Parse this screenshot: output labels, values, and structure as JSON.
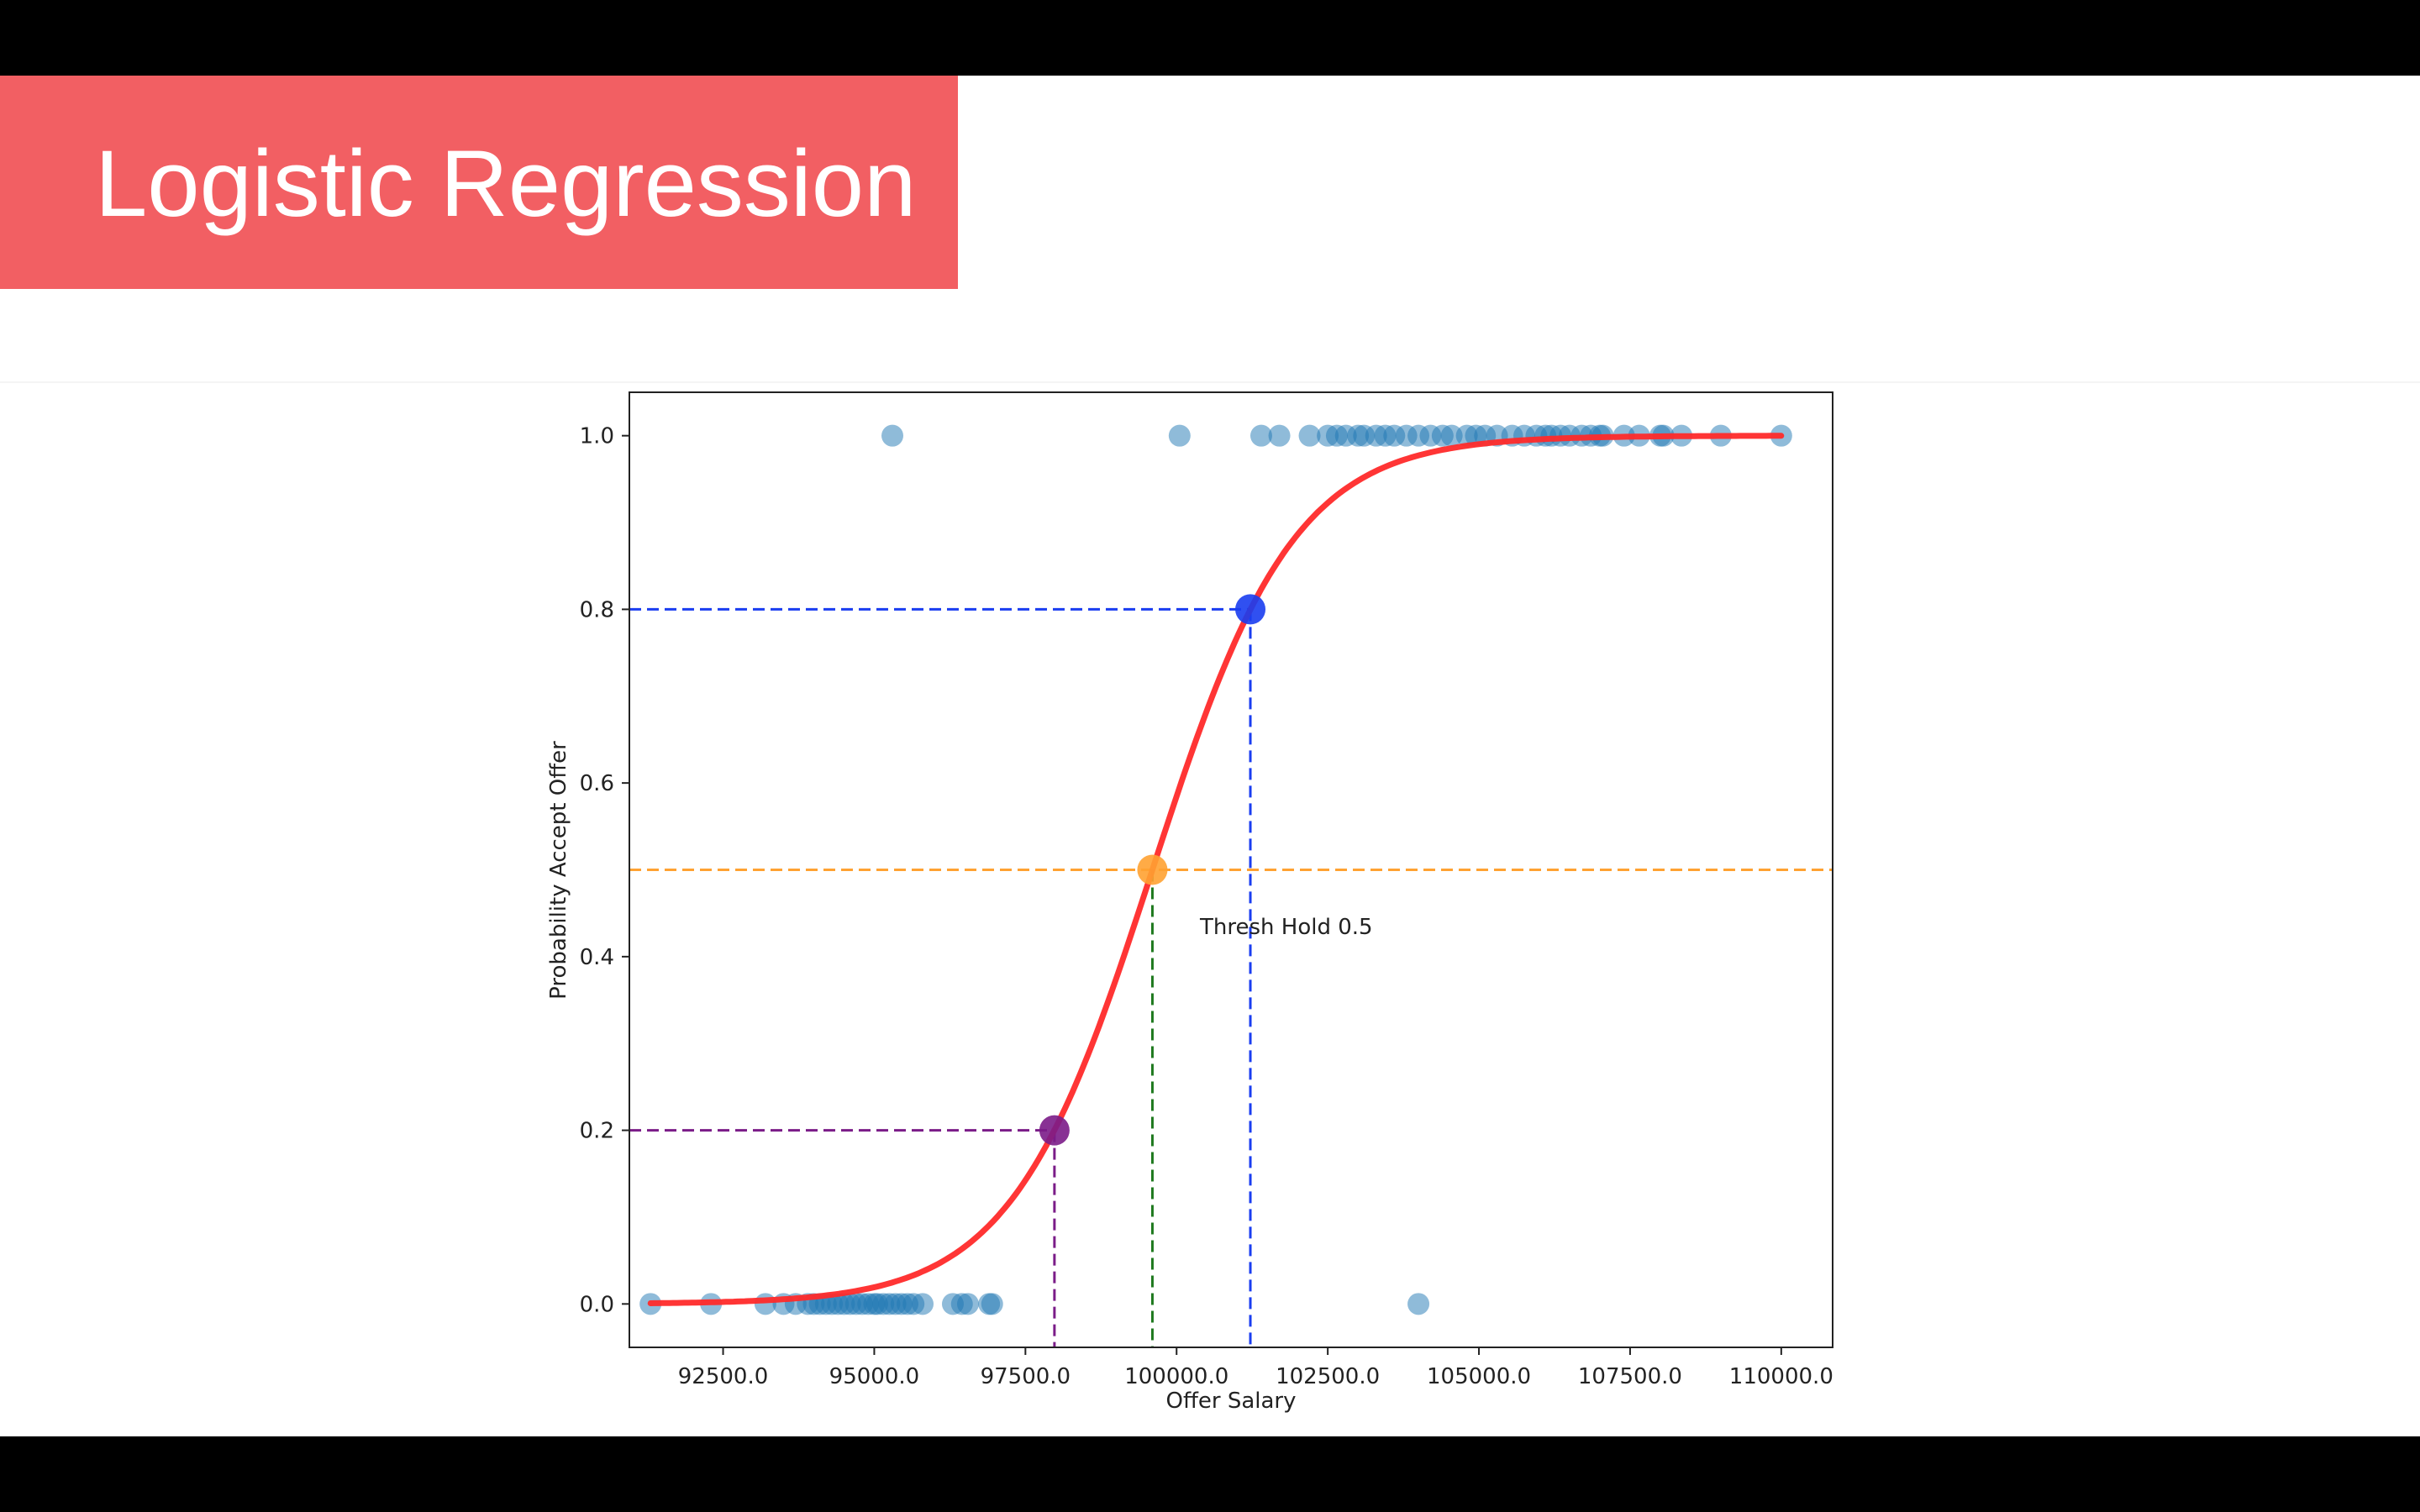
{
  "slide": {
    "title": "Logistic Regression"
  },
  "colors": {
    "banner": "#f25f63",
    "curve": "#ff2a2a",
    "points": "#1f77b4",
    "threshold": "#ffa232",
    "high_marker": "#1a3df0",
    "low_marker": "#7b1c88",
    "decision_line": "#1f7a1f"
  },
  "chart_data": {
    "type": "scatter",
    "xlabel": "Offer Salary",
    "ylabel": "Probability Accept Offer",
    "xlim": [
      90950,
      110850
    ],
    "ylim": [
      -0.05,
      1.05
    ],
    "xticks": [
      92500,
      95000,
      97500,
      100000,
      102500,
      105000,
      107500,
      110000
    ],
    "xtick_labels": [
      "92500.0",
      "95000.0",
      "97500.0",
      "100000.0",
      "102500.0",
      "105000.0",
      "107500.0",
      "110000.0"
    ],
    "yticks": [
      0.0,
      0.2,
      0.4,
      0.6,
      0.8,
      1.0
    ],
    "ytick_labels": [
      "0.0",
      "0.2",
      "0.4",
      "0.6",
      "0.8",
      "1.0"
    ],
    "grid": false,
    "legend": "none",
    "observations": {
      "accepted_y": 1.0,
      "accepted_x": [
        95300,
        100050,
        101400,
        101700,
        102200,
        102500,
        102650,
        102800,
        103000,
        103100,
        103300,
        103450,
        103600,
        103800,
        104000,
        104200,
        104400,
        104550,
        104800,
        104950,
        105100,
        105300,
        105550,
        105750,
        105950,
        106100,
        106200,
        106350,
        106500,
        106700,
        106850,
        107000,
        107050,
        107400,
        107650,
        108000,
        108050,
        108350,
        109000,
        110000
      ],
      "rejected_y": 0.0,
      "rejected_x": [
        91300,
        92300,
        93200,
        93500,
        93700,
        93900,
        94000,
        94100,
        94200,
        94300,
        94400,
        94500,
        94600,
        94700,
        94800,
        94900,
        95000,
        95050,
        95150,
        95250,
        95350,
        95450,
        95550,
        95650,
        95800,
        96300,
        96450,
        96550,
        96900,
        96950,
        104000
      ]
    },
    "curve": {
      "name": "logistic fit",
      "midpoint": 99600,
      "scale": 1170,
      "x_start": 91300,
      "x_end": 110000
    },
    "threshold": {
      "y": 0.5,
      "label": "Thresh Hold 0.5",
      "x": 99600
    },
    "marked_points": [
      {
        "x": 101220,
        "y": 0.8
      },
      {
        "x": 97980,
        "y": 0.2
      }
    ]
  }
}
